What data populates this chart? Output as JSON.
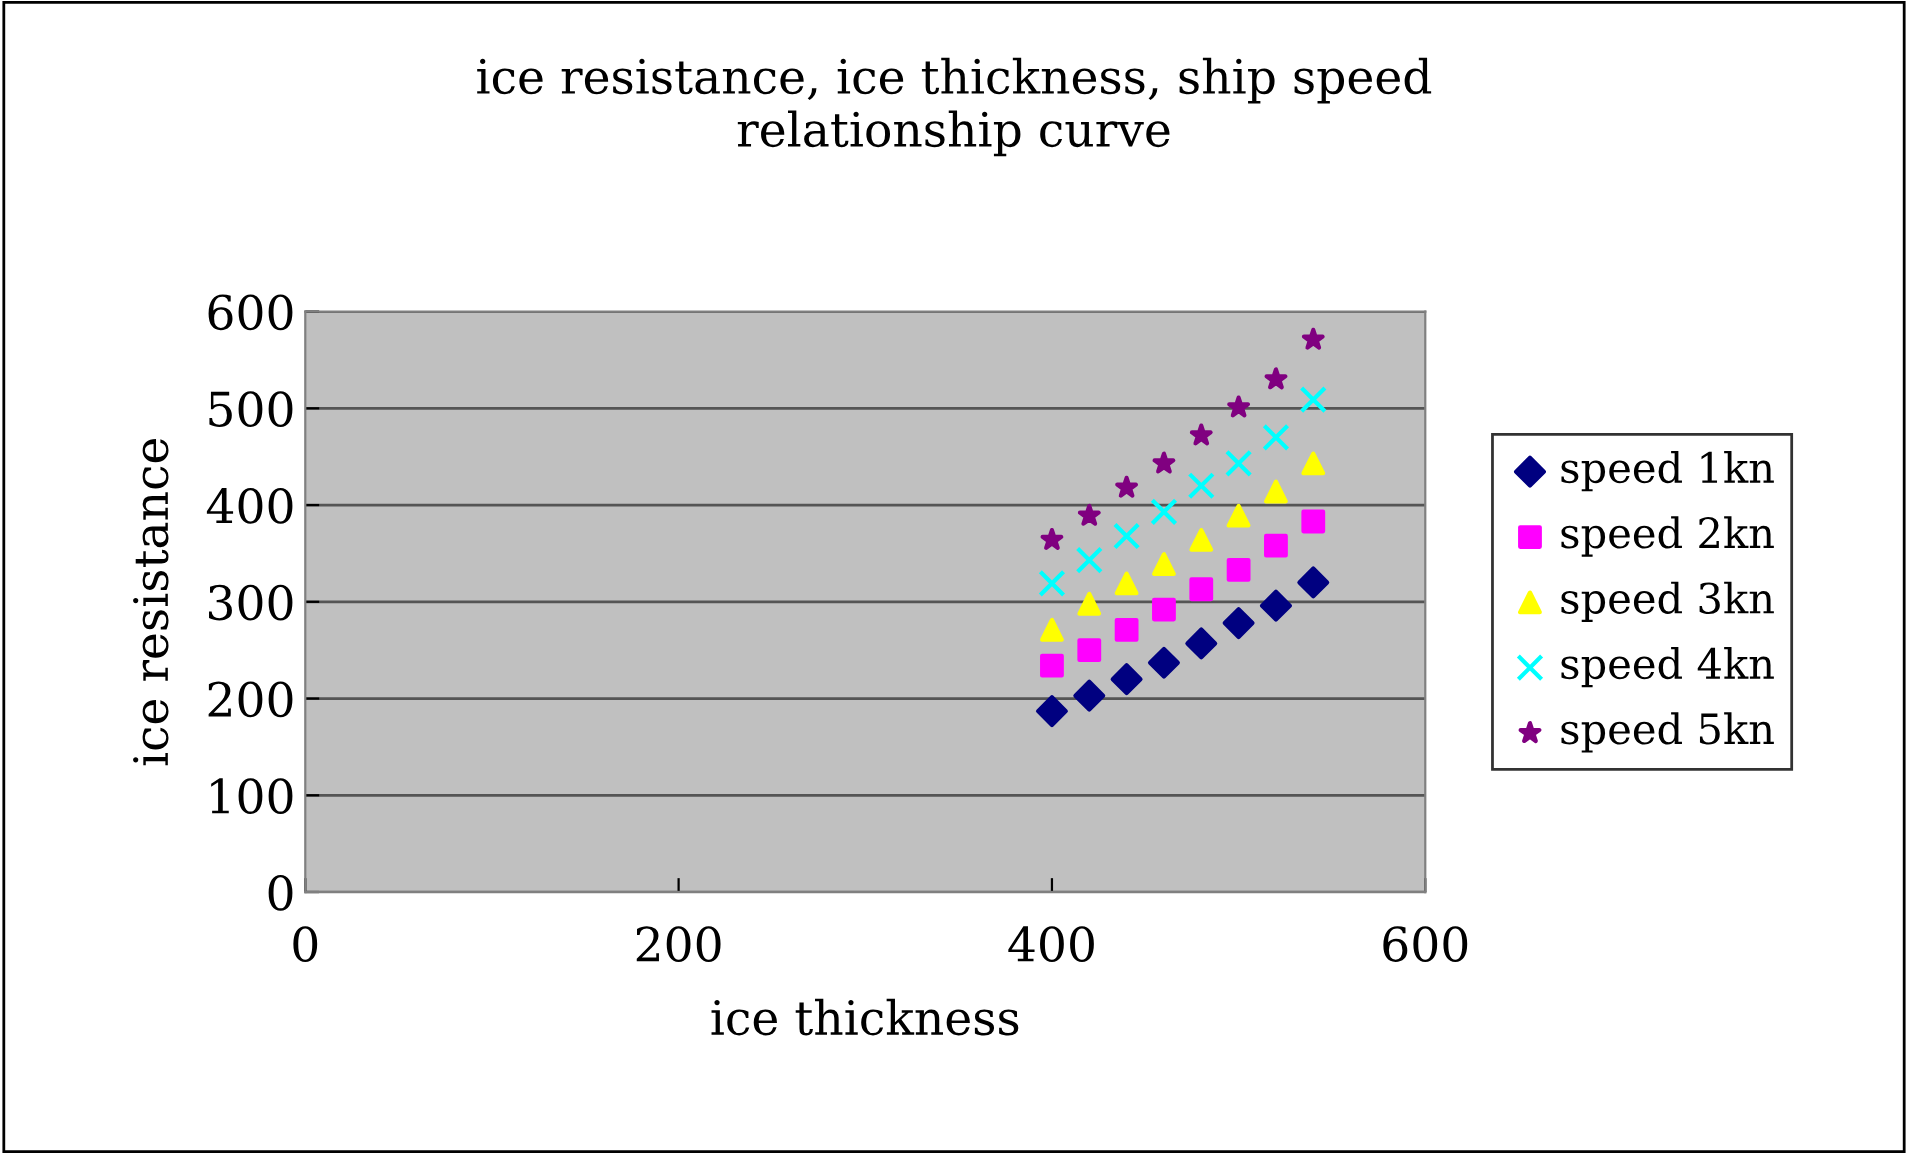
{
  "chart_data": {
    "type": "scatter",
    "title": "ice resistance, ice thickness, ship speed\nrelationship curve",
    "xlabel": "ice thickness",
    "ylabel": "ice resistance",
    "x": [
      400,
      420,
      440,
      460,
      480,
      500,
      520,
      540
    ],
    "series": [
      {
        "name": "speed 1kn",
        "color": "#000080",
        "marker": "diamond",
        "values": [
          187,
          203,
          220,
          237,
          257,
          278,
          296,
          320
        ]
      },
      {
        "name": "speed 2kn",
        "color": "#ff00ff",
        "marker": "square",
        "values": [
          234,
          250,
          271,
          292,
          313,
          333,
          358,
          383
        ]
      },
      {
        "name": "speed 3kn",
        "color": "#ffff00",
        "marker": "triangle",
        "values": [
          271,
          298,
          319,
          339,
          364,
          389,
          414,
          443
        ]
      },
      {
        "name": "speed 4kn",
        "color": "#00ffff",
        "marker": "cross",
        "values": [
          319,
          343,
          368,
          393,
          420,
          443,
          470,
          509
        ]
      },
      {
        "name": "speed 5kn",
        "color": "#800080",
        "marker": "star",
        "values": [
          364,
          389,
          418,
          443,
          472,
          501,
          530,
          571
        ]
      }
    ],
    "xlim": [
      0,
      600
    ],
    "xticks": [
      0,
      200,
      400,
      600
    ],
    "ylim": [
      0,
      600
    ],
    "yticks": [
      0,
      100,
      200,
      300,
      400,
      500,
      600
    ],
    "grid": "y",
    "legend": "right"
  }
}
